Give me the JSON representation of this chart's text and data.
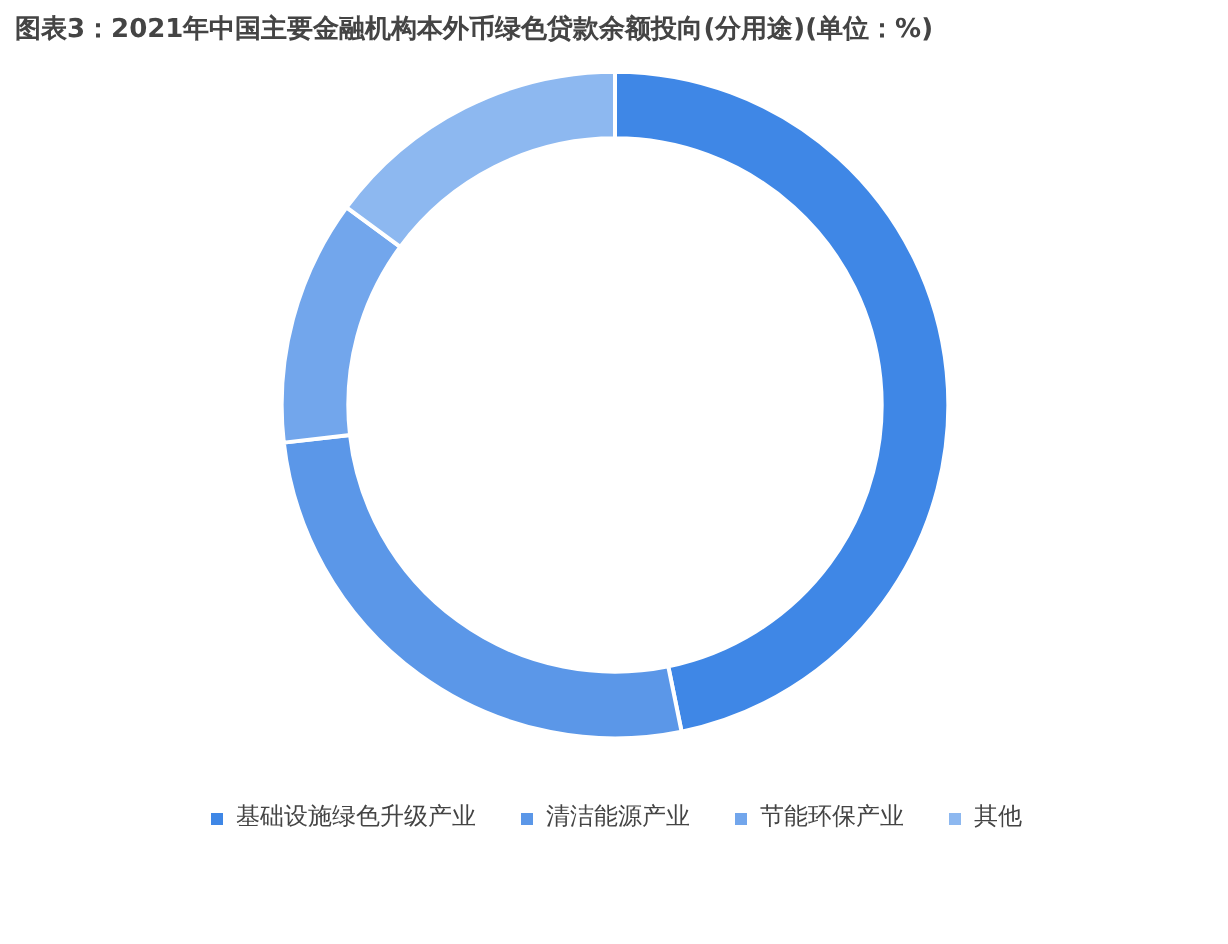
{
  "chart_data": {
    "type": "donut",
    "title": "图表3：2021年中国主要金融机构本外币绿色贷款余额投向(分用途)(单位：%)",
    "categories": [
      "基础设施绿色升级产业",
      "清洁能源产业",
      "节能环保产业",
      "其他"
    ],
    "values": [
      46.8,
      26.4,
      11.9,
      14.9
    ],
    "colors": [
      "#3f87e6",
      "#5b97e8",
      "#72a6ec",
      "#8db8f0"
    ],
    "legend": "bottom"
  }
}
